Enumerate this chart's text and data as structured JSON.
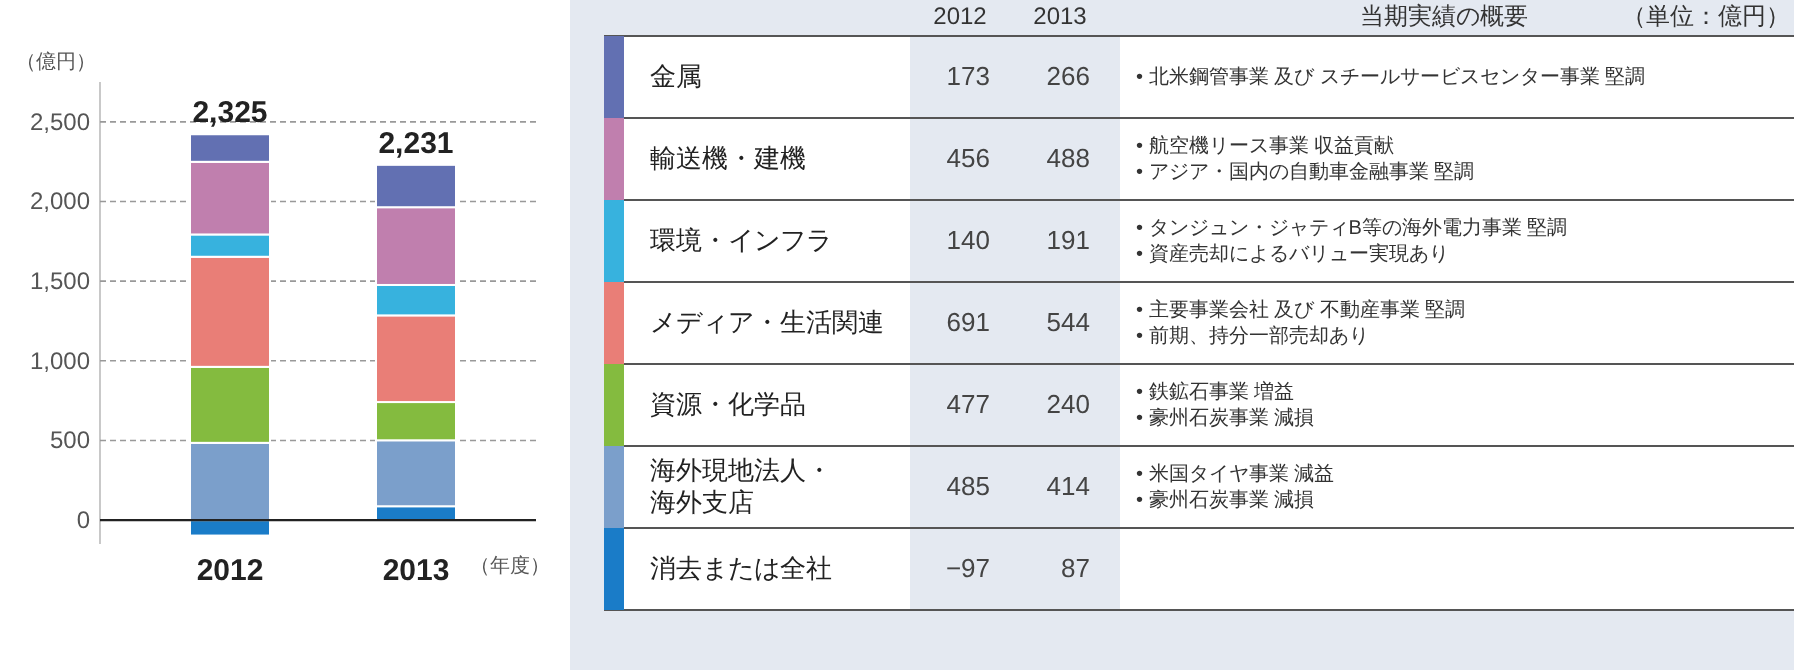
{
  "chart_data": [
    {
      "type": "bar",
      "stacked": true,
      "categories": [
        "2012",
        "2013"
      ],
      "series": [
        {
          "color": "#1a7cc8",
          "values": [
            -97,
            87
          ]
        },
        {
          "color": "#7b9fcb",
          "values": [
            485,
            414
          ]
        },
        {
          "color": "#84bb3f",
          "values": [
            477,
            240
          ]
        },
        {
          "color": "#e97e77",
          "values": [
            691,
            544
          ]
        },
        {
          "color": "#37b2de",
          "values": [
            140,
            191
          ]
        },
        {
          "color": "#c07fae",
          "values": [
            456,
            488
          ]
        },
        {
          "color": "#6270b2",
          "values": [
            173,
            266
          ]
        }
      ],
      "totals": [
        "2,325",
        "2,231"
      ],
      "ylim": [
        -150,
        2750
      ],
      "yticks": [
        {
          "value": 0,
          "label": "0"
        },
        {
          "value": 500,
          "label": "500"
        },
        {
          "value": 1000,
          "label": "1,000"
        },
        {
          "value": 1500,
          "label": "1,500"
        },
        {
          "value": 2000,
          "label": "2,000"
        },
        {
          "value": 2500,
          "label": "2,500"
        }
      ],
      "grid": "y",
      "ylabel": "（億円）",
      "xlabel": "（年度）"
    },
    {
      "type": "other",
      "categories": [
        "金属",
        "輸送機・建機",
        "環境・インフラ",
        "メディア・生活関連",
        "資源・化学品",
        "海外現地法人・海外支店",
        "消去または全社"
      ],
      "colors": [
        "#6270b2",
        "#c07fae",
        "#37b2de",
        "#e97e77",
        "#84bb3f",
        "#7b9fcb",
        "#1a7cc8"
      ],
      "series": [
        {
          "name": "2012",
          "values": [
            173,
            456,
            140,
            691,
            477,
            485,
            -97
          ]
        },
        {
          "name": "2013",
          "values": [
            266,
            488,
            191,
            544,
            240,
            414,
            87
          ]
        }
      ],
      "data_labels": true,
      "annotations": [
        "当期実績の概要",
        "（単位：億円）",
        "• 北米鋼管事業 及び スチールサービスセンター事業 堅調",
        "• 航空機リース事業 収益貢献\n• アジア・国内の自動車金融事業 堅調",
        "• タンジュン・ジャティB等の海外電力事業 堅調\n• 資産売却によるバリュー実現あり",
        "• 主要事業会社 及び 不動産事業 堅調\n• 前期、持分一部売却あり",
        "• 鉄鉱石事業 増益\n• 豪州石炭事業 減損",
        "• 米国タイヤ事業 減益\n• 豪州石炭事業 減損"
      ]
    }
  ]
}
